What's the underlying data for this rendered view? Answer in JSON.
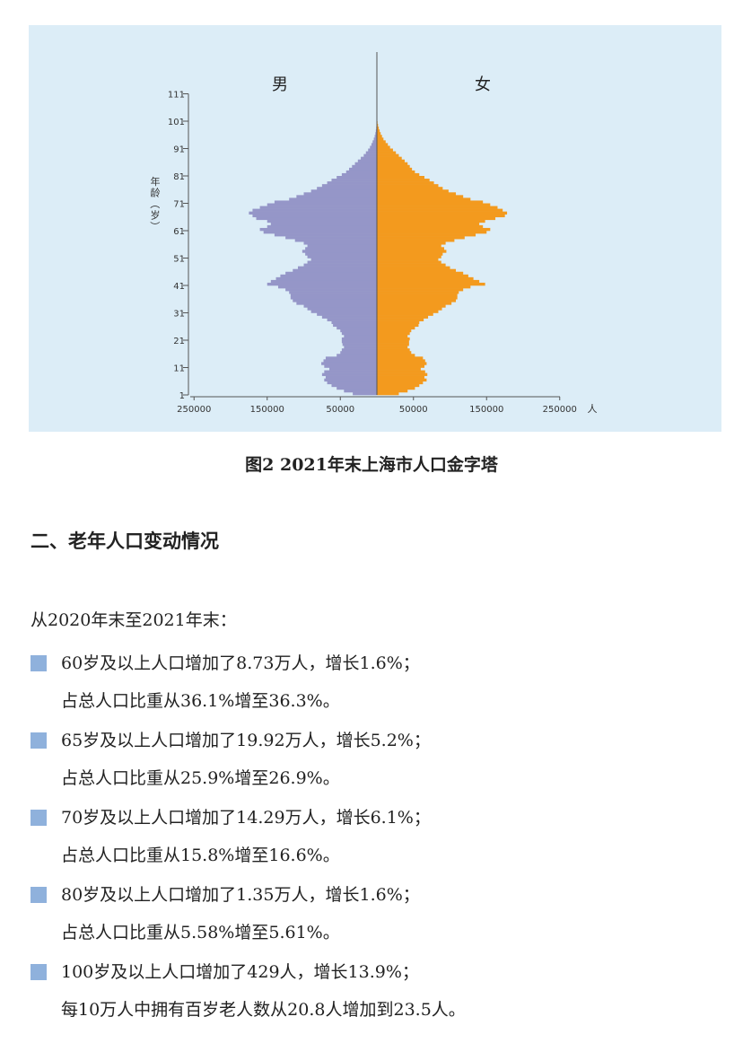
{
  "chart_data": {
    "type": "bar",
    "orientation": "horizontal",
    "layout": "population-pyramid",
    "left_label": "男",
    "right_label": "女",
    "ylabel": "年龄（岁）",
    "xlabel": "人",
    "y_ticks": [
      "1",
      "11",
      "21",
      "31",
      "41",
      "51",
      "61",
      "71",
      "81",
      "91",
      "101",
      "111"
    ],
    "x_ticks_left": [
      "250000",
      "150000",
      "50000"
    ],
    "x_ticks_right": [
      "50000",
      "150000",
      "250000"
    ],
    "xlim": [
      -250000,
      250000
    ],
    "ylim": [
      1,
      111
    ],
    "colors": {
      "male": "#9596c8",
      "female": "#f39a1e"
    },
    "ages": [
      1,
      2,
      3,
      4,
      5,
      6,
      7,
      8,
      9,
      10,
      11,
      12,
      13,
      14,
      15,
      16,
      17,
      18,
      19,
      20,
      21,
      22,
      23,
      24,
      25,
      26,
      27,
      28,
      29,
      30,
      31,
      32,
      33,
      34,
      35,
      36,
      37,
      38,
      39,
      40,
      41,
      42,
      43,
      44,
      45,
      46,
      47,
      48,
      49,
      50,
      51,
      52,
      53,
      54,
      55,
      56,
      57,
      58,
      59,
      60,
      61,
      62,
      63,
      64,
      65,
      66,
      67,
      68,
      69,
      70,
      71,
      72,
      73,
      74,
      75,
      76,
      77,
      78,
      79,
      80,
      81,
      82,
      83,
      84,
      85,
      86,
      87,
      88,
      89,
      90,
      91,
      92,
      93,
      94,
      95,
      96,
      97,
      98,
      99,
      100,
      101
    ],
    "series": [
      {
        "name": "男",
        "values": [
          33000,
          45000,
          55000,
          62000,
          68000,
          72000,
          70000,
          75000,
          72000,
          65000,
          72000,
          76000,
          73000,
          70000,
          55000,
          50000,
          48000,
          45000,
          47000,
          48000,
          48000,
          45000,
          48000,
          50000,
          55000,
          60000,
          62000,
          68000,
          75000,
          82000,
          90000,
          95000,
          100000,
          110000,
          115000,
          118000,
          118000,
          120000,
          125000,
          135000,
          150000,
          145000,
          138000,
          132000,
          125000,
          115000,
          108000,
          100000,
          95000,
          90000,
          95000,
          98000,
          102000,
          98000,
          95000,
          100000,
          112000,
          125000,
          140000,
          155000,
          160000,
          150000,
          145000,
          150000,
          165000,
          170000,
          175000,
          170000,
          160000,
          150000,
          140000,
          120000,
          110000,
          100000,
          90000,
          82000,
          75000,
          68000,
          62000,
          55000,
          48000,
          42000,
          38000,
          34000,
          30000,
          26000,
          22000,
          18000,
          15000,
          12000,
          9500,
          7500,
          5800,
          4200,
          3000,
          2100,
          1400,
          900,
          500,
          300,
          150
        ]
      },
      {
        "name": "女",
        "values": [
          30000,
          42000,
          52000,
          58000,
          63000,
          68000,
          65000,
          69000,
          66000,
          60000,
          65000,
          68000,
          66000,
          63000,
          52000,
          47000,
          45000,
          42000,
          44000,
          44000,
          45000,
          42000,
          45000,
          47000,
          52000,
          57000,
          58000,
          64000,
          70000,
          77000,
          84000,
          89000,
          94000,
          102000,
          108000,
          110000,
          110000,
          112000,
          118000,
          128000,
          148000,
          140000,
          132000,
          125000,
          118000,
          108000,
          100000,
          94000,
          88000,
          84000,
          88000,
          90000,
          95000,
          92000,
          88000,
          94000,
          106000,
          120000,
          135000,
          150000,
          155000,
          145000,
          140000,
          148000,
          162000,
          175000,
          178000,
          172000,
          165000,
          155000,
          145000,
          128000,
          118000,
          108000,
          98000,
          90000,
          84000,
          78000,
          72000,
          65000,
          58000,
          52000,
          48000,
          45000,
          42000,
          38000,
          34000,
          30000,
          26000,
          22000,
          18000,
          15000,
          12000,
          9000,
          7000,
          5200,
          3800,
          2600,
          1600,
          900,
          450
        ]
      }
    ]
  },
  "figure_caption": "图2  2021年末上海市人口金字塔",
  "section_title": "二、老年人口变动情况",
  "intro": "从2020年末至2021年末：",
  "stats": [
    {
      "line1": "60岁及以上人口增加了8.73万人，增长1.6%；",
      "line2": "占总人口比重从36.1%增至36.3%。"
    },
    {
      "line1": "65岁及以上人口增加了19.92万人，增长5.2%；",
      "line2": "占总人口比重从25.9%增至26.9%。"
    },
    {
      "line1": "70岁及以上人口增加了14.29万人，增长6.1%；",
      "line2": "占总人口比重从15.8%增至16.6%。"
    },
    {
      "line1": "80岁及以上人口增加了1.35万人，增长1.6%；",
      "line2": "占总人口比重从5.58%增至5.61%。"
    },
    {
      "line1": "100岁及以上人口增加了429人，增长13.9%；",
      "line2": "每10万人中拥有百岁老人数从20.8人增加到23.5人。"
    }
  ]
}
